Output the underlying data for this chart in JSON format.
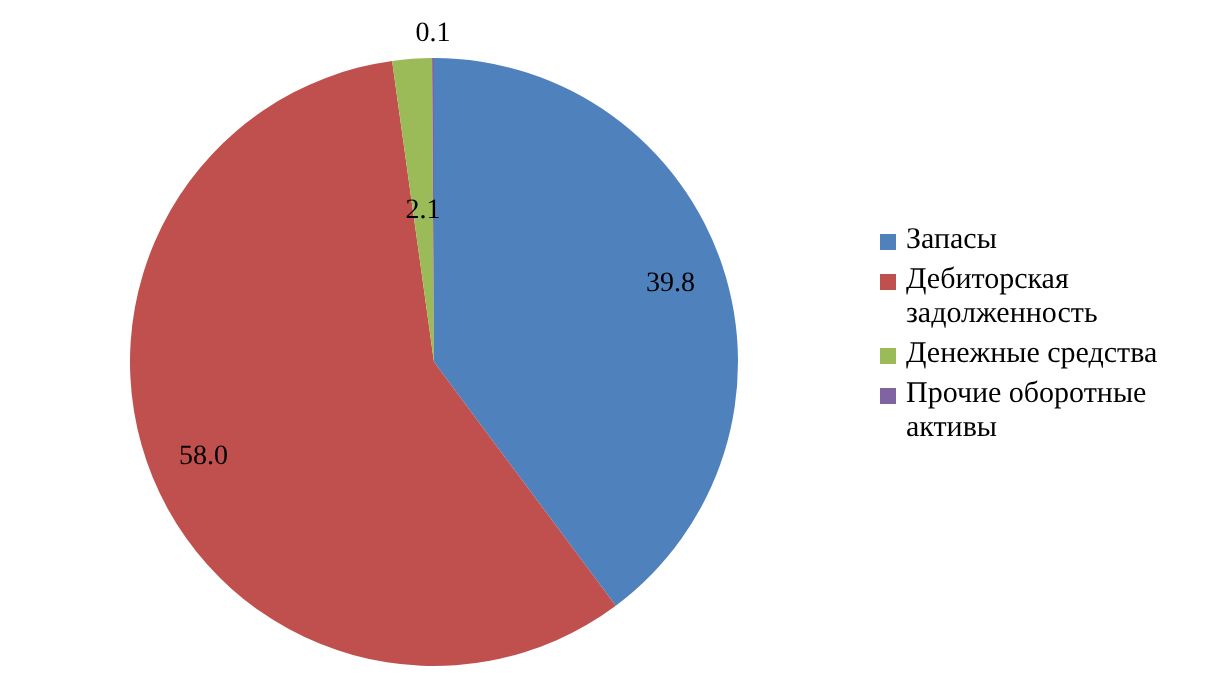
{
  "chart_data": {
    "type": "pie",
    "categories": [
      "Запасы",
      "Дебиторская задолженность",
      "Денежные средства",
      "Прочие оборотные активы"
    ],
    "values": [
      39.8,
      58.0,
      2.1,
      0.1
    ],
    "colors": [
      "#4f81bd",
      "#c0504d",
      "#9bbb59",
      "#8064a2"
    ],
    "value_labels": [
      "39.8",
      "58.0",
      "2.1",
      "0.1"
    ],
    "legend": "right"
  }
}
